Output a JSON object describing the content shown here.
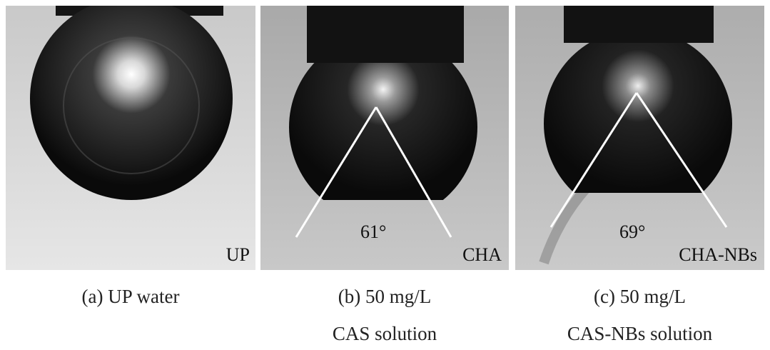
{
  "panels": [
    {
      "label": "UP",
      "caption_line1": "(a) UP water",
      "caption_line2": ""
    },
    {
      "label": "CHA",
      "angle": "61°",
      "caption_line1": "(b) 50 mg/L",
      "caption_line2": "CAS solution"
    },
    {
      "label": "CHA-NBs",
      "angle": "69°",
      "caption_line1": "(c) 50 mg/L",
      "caption_line2": "CAS-NBs solution"
    }
  ]
}
